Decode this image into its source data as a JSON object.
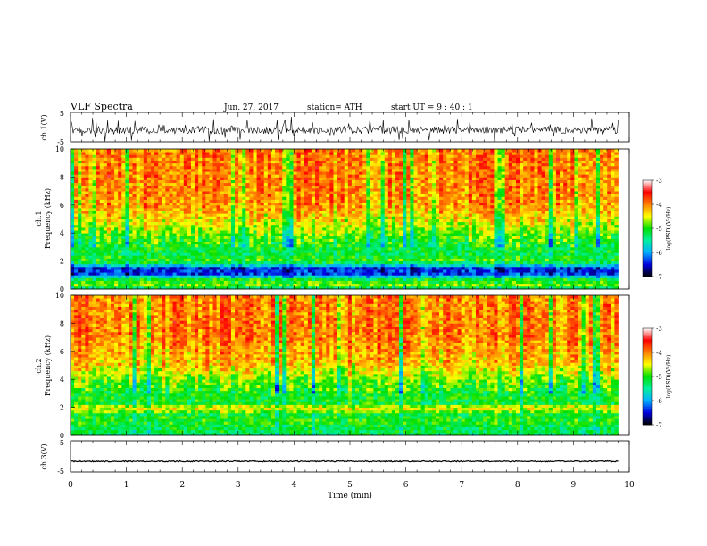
{
  "header": {
    "title": "VLF Spectra",
    "date": "Jun. 27, 2017",
    "station": "station= ATH",
    "start": "start UT =   9 : 40 : 1"
  },
  "chart_data": [
    {
      "type": "line",
      "name": "ch1-waveform",
      "ylabel": "ch.1(V)",
      "ylim": [
        -5,
        5
      ],
      "y_ticks": [
        "5",
        "-5"
      ],
      "xlim": [
        0,
        10
      ],
      "trace_extent_min": 9.8,
      "baseline_volts": -1.0,
      "amplitude_volts": 2.5
    },
    {
      "type": "heatmap",
      "name": "ch1-spectrogram",
      "ylabel": "ch.1",
      "ylabel2": "Frequency (kHz)",
      "ylim": [
        0,
        10
      ],
      "y_ticks": [
        "0",
        "2",
        "4",
        "6",
        "8",
        "10"
      ],
      "xlim": [
        0,
        9.8
      ],
      "colorbar": {
        "label": "log(PSD)(V²/Hz)",
        "range": [
          -7,
          -3
        ],
        "ticks": [
          "-3",
          "-4",
          "-5",
          "-6",
          "-7"
        ],
        "colors": [
          "#000000",
          "#0000e0",
          "#00b0ff",
          "#00f0a0",
          "#00e000",
          "#ffff00",
          "#ff8000",
          "#ff0000",
          "#ffffff"
        ]
      },
      "profile_khz_logpsd": [
        [
          0.0,
          -5.5
        ],
        [
          0.3,
          -4.8
        ],
        [
          0.8,
          -5.2
        ],
        [
          1.0,
          -6.3
        ],
        [
          1.5,
          -6.4
        ],
        [
          2.0,
          -4.9
        ],
        [
          2.5,
          -5.2
        ],
        [
          3.5,
          -5.0
        ],
        [
          4.5,
          -4.6
        ],
        [
          6.0,
          -4.1
        ],
        [
          8.0,
          -4.0
        ],
        [
          10.0,
          -4.0
        ]
      ]
    },
    {
      "type": "heatmap",
      "name": "ch2-spectrogram",
      "ylabel": "ch.2",
      "ylabel2": "Frequency (kHz)",
      "ylim": [
        0,
        10
      ],
      "y_ticks": [
        "0",
        "2",
        "4",
        "6",
        "8",
        "10"
      ],
      "xlim": [
        0,
        9.8
      ],
      "colorbar": {
        "label": "log(PSD)(V²/Hz)",
        "range": [
          -7,
          -3
        ],
        "ticks": [
          "-3",
          "-4",
          "-5",
          "-6",
          "-7"
        ],
        "colors": [
          "#000000",
          "#0000e0",
          "#00b0ff",
          "#00f0a0",
          "#00e000",
          "#ffff00",
          "#ff8000",
          "#ff0000",
          "#ffffff"
        ]
      },
      "profile_khz_logpsd": [
        [
          0.0,
          -5.3
        ],
        [
          0.5,
          -5.2
        ],
        [
          1.0,
          -5.0
        ],
        [
          1.5,
          -5.1
        ],
        [
          2.0,
          -4.4
        ],
        [
          2.3,
          -5.1
        ],
        [
          3.0,
          -5.1
        ],
        [
          4.0,
          -4.8
        ],
        [
          5.0,
          -4.3
        ],
        [
          7.0,
          -4.0
        ],
        [
          10.0,
          -4.0
        ]
      ]
    },
    {
      "type": "line",
      "name": "ch3-waveform",
      "ylabel": "ch.3(V)",
      "ylim": [
        -5,
        5
      ],
      "y_ticks": [
        "5",
        "-5"
      ],
      "xlim": [
        0,
        10
      ],
      "trace_extent_min": 9.8,
      "baseline_volts": -1.6,
      "amplitude_volts": 0.35
    }
  ],
  "xaxis": {
    "xlabel": "Time (min)",
    "ticks": [
      "0",
      "1",
      "2",
      "3",
      "4",
      "5",
      "6",
      "7",
      "8",
      "9",
      "10"
    ]
  }
}
